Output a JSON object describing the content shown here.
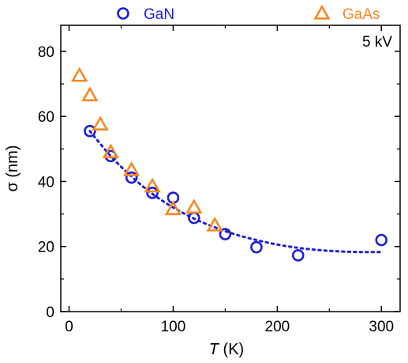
{
  "chart_data": {
    "type": "scatter",
    "xlabel": {
      "italic": "T",
      "rest": " (K)"
    },
    "ylabel": "σ (nm)",
    "xlim": [
      -8,
      318
    ],
    "ylim": [
      0,
      88
    ],
    "xticks": [
      0,
      100,
      200,
      300
    ],
    "yticks": [
      0,
      20,
      40,
      60,
      80
    ],
    "annotation": "5 kV",
    "legend_position": "top (outside plot)",
    "series": [
      {
        "name": "GaN",
        "marker": "circle",
        "color": "#1f1fd6",
        "x": [
          20,
          40,
          60,
          80,
          100,
          120,
          150,
          180,
          220,
          300
        ],
        "y": [
          55.5,
          47.8,
          41.2,
          36.5,
          35.0,
          28.8,
          23.8,
          19.8,
          17.3,
          22.0
        ]
      },
      {
        "name": "GaAs",
        "marker": "triangle",
        "color": "#f5891f",
        "x": [
          10,
          20,
          30,
          40,
          60,
          80,
          100,
          120,
          140
        ],
        "y": [
          72.5,
          66.5,
          57.5,
          49.0,
          43.5,
          38.5,
          31.5,
          32.0,
          26.5
        ]
      }
    ],
    "fit": {
      "style": "dotted",
      "color": "#1f1fd6",
      "x": [
        20,
        40,
        60,
        80,
        100,
        120,
        140,
        160,
        180,
        200,
        220,
        240,
        260,
        280,
        300
      ],
      "y": [
        55.5,
        47.8,
        41.5,
        36.2,
        32.0,
        28.6,
        25.9,
        23.7,
        22.0,
        20.6,
        19.6,
        18.9,
        18.5,
        18.3,
        18.3
      ]
    }
  }
}
